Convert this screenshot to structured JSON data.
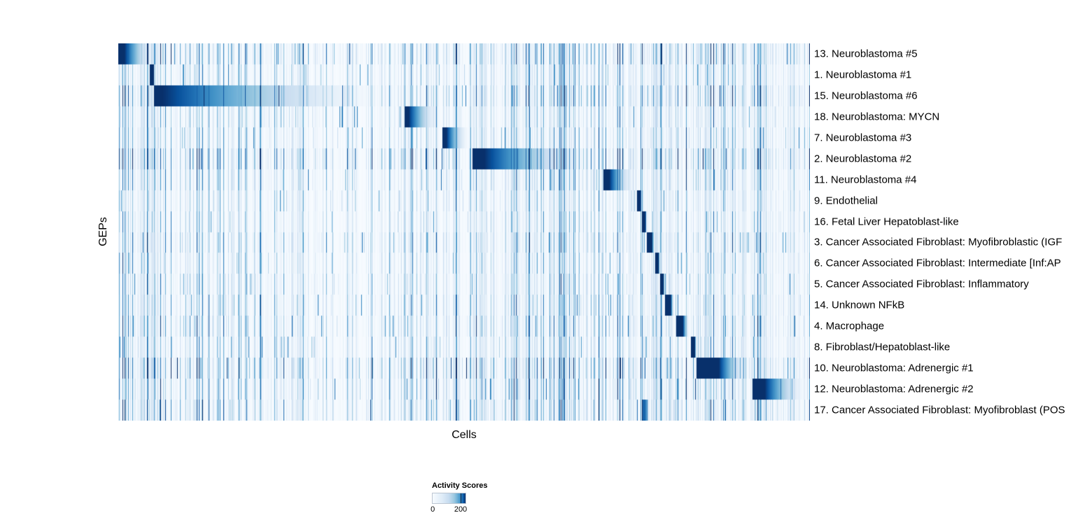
{
  "chart_data": {
    "type": "heatmap",
    "title": "",
    "xlabel": "Cells",
    "ylabel": "GEPs",
    "colormap": "Blues",
    "value_range": [
      0,
      200
    ],
    "legend": {
      "title": "Activity Scores",
      "min_label": "0",
      "max_label": "200"
    },
    "rows": [
      {
        "label": "13. Neuroblastoma #5",
        "start": 0.0,
        "end": 0.057,
        "head": 0.15,
        "peak": 200,
        "noise": 1.3
      },
      {
        "label": "1. Neuroblastoma #1",
        "start": 0.045,
        "end": 0.052,
        "head": 0.8,
        "peak": 200,
        "noise": 0.9
      },
      {
        "label": "15. Neuroblastoma #6",
        "start": 0.051,
        "end": 0.411,
        "head": 0.035,
        "peak": 200,
        "noise": 1.3
      },
      {
        "label": "18. Neuroblastoma: MYCN",
        "start": 0.413,
        "end": 0.468,
        "head": 0.12,
        "peak": 200,
        "noise": 0.9
      },
      {
        "label": "7. Neuroblastoma #3",
        "start": 0.468,
        "end": 0.509,
        "head": 0.15,
        "peak": 200,
        "noise": 0.9
      },
      {
        "label": "2. Neuroblastoma #2",
        "start": 0.512,
        "end": 0.7,
        "head": 0.09,
        "peak": 200,
        "noise": 1.5
      },
      {
        "label": "11. Neuroblastoma #4",
        "start": 0.701,
        "end": 0.749,
        "head": 0.18,
        "peak": 200,
        "noise": 1.0
      },
      {
        "label": "9. Endothelial",
        "start": 0.75,
        "end": 0.757,
        "head": 0.7,
        "peak": 200,
        "noise": 0.8
      },
      {
        "label": "16. Fetal Liver Hepatoblast-like",
        "start": 0.757,
        "end": 0.764,
        "head": 0.7,
        "peak": 200,
        "noise": 0.8
      },
      {
        "label": "3. Cancer Associated Fibroblast: Myofibroblastic (IGF",
        "start": 0.764,
        "end": 0.776,
        "head": 0.6,
        "peak": 200,
        "noise": 1.0
      },
      {
        "label": "6. Cancer Associated Fibroblast: Intermediate [Inf:AP",
        "start": 0.776,
        "end": 0.783,
        "head": 0.7,
        "peak": 200,
        "noise": 0.9
      },
      {
        "label": "5. Cancer Associated Fibroblast: Inflammatory",
        "start": 0.783,
        "end": 0.79,
        "head": 0.7,
        "peak": 200,
        "noise": 0.9
      },
      {
        "label": "14. Unknown NFkB",
        "start": 0.79,
        "end": 0.804,
        "head": 0.6,
        "peak": 200,
        "noise": 1.0
      },
      {
        "label": "4. Macrophage",
        "start": 0.806,
        "end": 0.826,
        "head": 0.5,
        "peak": 200,
        "noise": 1.1
      },
      {
        "label": "8. Fibroblast/Hepatoblast-like",
        "start": 0.827,
        "end": 0.836,
        "head": 0.7,
        "peak": 200,
        "noise": 0.9
      },
      {
        "label": "10. Neuroblastoma: Adrenergic #1",
        "start": 0.836,
        "end": 0.916,
        "head": 0.4,
        "peak": 200,
        "noise": 1.5
      },
      {
        "label": "12. Neuroblastoma: Adrenergic #2",
        "start": 0.916,
        "end": 1.0,
        "head": 0.22,
        "peak": 200,
        "noise": 1.2
      },
      {
        "label": "17. Cancer Associated Fibroblast: Myofibroblast (POS",
        "start": 0.758,
        "end": 0.77,
        "head": 0.3,
        "peak": 160,
        "noise": 1.2
      }
    ],
    "noise_bands": [
      {
        "start": 0.0,
        "end": 0.06,
        "amp": 0.5
      },
      {
        "start": 0.05,
        "end": 0.41,
        "amp": 0.18
      },
      {
        "start": 0.41,
        "end": 0.51,
        "amp": 0.08
      },
      {
        "start": 0.512,
        "end": 0.7,
        "amp": 0.45
      },
      {
        "start": 0.7,
        "end": 0.75,
        "amp": 0.3
      },
      {
        "start": 0.75,
        "end": 0.835,
        "amp": 0.45
      },
      {
        "start": 0.835,
        "end": 0.92,
        "amp": 0.25
      },
      {
        "start": 0.92,
        "end": 1.0,
        "amp": 0.3
      }
    ]
  }
}
